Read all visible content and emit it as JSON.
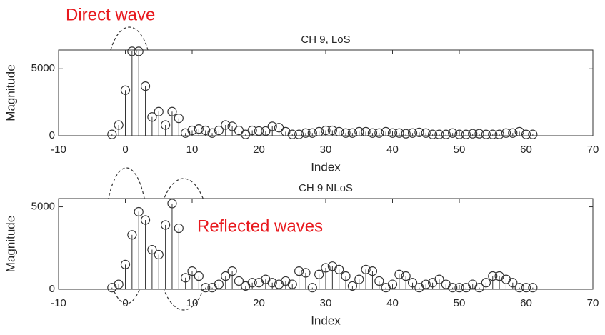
{
  "chart_data": [
    {
      "type": "stem",
      "title": "CH 9, LoS",
      "xlabel": "Index",
      "ylabel": "Magnitude",
      "annotation": "Direct wave",
      "x": [
        -2,
        -1,
        0,
        1,
        2,
        3,
        4,
        5,
        6,
        7,
        8,
        9,
        10,
        11,
        12,
        13,
        14,
        15,
        16,
        17,
        18,
        19,
        20,
        21,
        22,
        23,
        24,
        25,
        26,
        27,
        28,
        29,
        30,
        31,
        32,
        33,
        34,
        35,
        36,
        37,
        38,
        39,
        40,
        41,
        42,
        43,
        44,
        45,
        46,
        47,
        48,
        49,
        50,
        51,
        52,
        53,
        54,
        55,
        56,
        57,
        58,
        59,
        60,
        61
      ],
      "values": [
        100,
        800,
        3400,
        6300,
        6300,
        3700,
        1400,
        1800,
        800,
        1800,
        1300,
        200,
        400,
        500,
        400,
        200,
        400,
        800,
        700,
        400,
        100,
        400,
        350,
        350,
        700,
        600,
        300,
        100,
        100,
        200,
        200,
        300,
        400,
        400,
        300,
        200,
        200,
        300,
        300,
        200,
        200,
        300,
        200,
        200,
        150,
        200,
        250,
        200,
        100,
        100,
        100,
        200,
        100,
        100,
        150,
        150,
        100,
        100,
        100,
        200,
        200,
        300,
        100,
        100
      ],
      "color": "#333333",
      "xlim": [
        -10,
        70
      ],
      "xticks": [
        -10,
        0,
        10,
        20,
        30,
        40,
        50,
        60,
        70
      ],
      "ylim": [
        0,
        6400
      ],
      "yticks": [
        0,
        5000
      ]
    },
    {
      "type": "stem",
      "title": "CH 9 NLoS",
      "xlabel": "Index",
      "ylabel": "Magnitude",
      "annotation": "Reflected waves",
      "x": [
        -2,
        -1,
        0,
        1,
        2,
        3,
        4,
        5,
        6,
        7,
        8,
        9,
        10,
        11,
        12,
        13,
        14,
        15,
        16,
        17,
        18,
        19,
        20,
        21,
        22,
        23,
        24,
        25,
        26,
        27,
        28,
        29,
        30,
        31,
        32,
        33,
        34,
        35,
        36,
        37,
        38,
        39,
        40,
        41,
        42,
        43,
        44,
        45,
        46,
        47,
        48,
        49,
        50,
        51,
        52,
        53,
        54,
        55,
        56,
        57,
        58,
        59,
        60,
        61
      ],
      "values": [
        100,
        300,
        1500,
        3300,
        4700,
        4200,
        2400,
        2100,
        3900,
        5200,
        3700,
        700,
        1100,
        800,
        100,
        100,
        300,
        800,
        1100,
        500,
        200,
        400,
        400,
        600,
        400,
        300,
        500,
        300,
        1100,
        1000,
        100,
        900,
        1300,
        1400,
        1200,
        800,
        200,
        600,
        1200,
        1100,
        500,
        100,
        300,
        900,
        800,
        400,
        100,
        300,
        400,
        600,
        300,
        100,
        100,
        100,
        300,
        100,
        400,
        800,
        800,
        600,
        400,
        100,
        100,
        100
      ],
      "color": "#333333",
      "xlim": [
        -10,
        70
      ],
      "xticks": [
        -10,
        0,
        10,
        20,
        30,
        40,
        50,
        60,
        70
      ],
      "ylim": [
        0,
        5500
      ],
      "yticks": [
        0,
        5000
      ]
    }
  ]
}
